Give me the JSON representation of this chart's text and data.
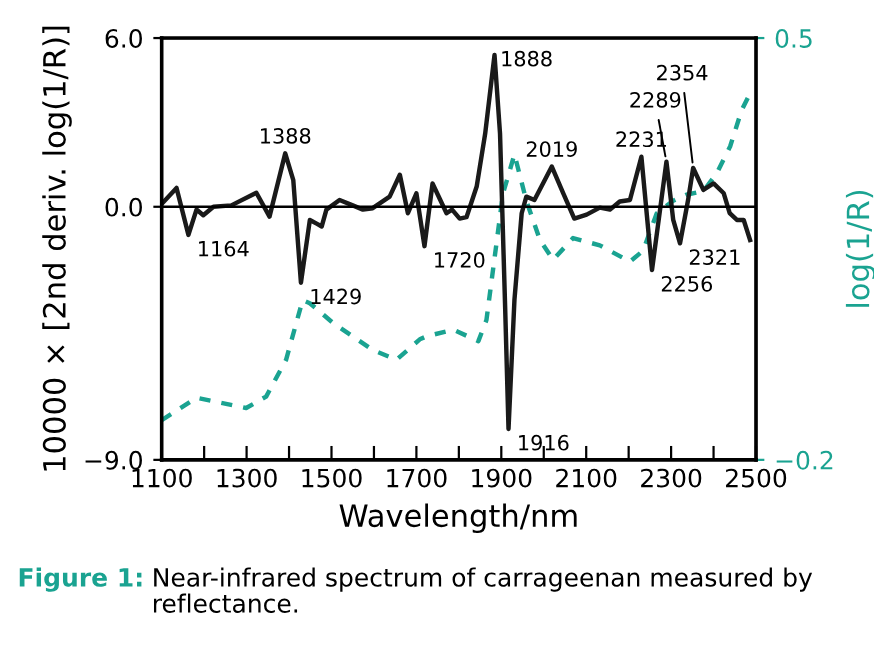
{
  "chart_data": {
    "type": "line",
    "xlabel": "Wavelength/nm",
    "ylabel": "10000 × [2nd deriv. log(1/R)]",
    "y2label": "log(1/R)",
    "xlim": [
      1100,
      2500
    ],
    "xticks": [
      1100,
      {
        "value": 1200,
        "label": null
      },
      1300,
      {
        "value": 1400,
        "label": null
      },
      1500,
      {
        "value": 1600,
        "label": null
      },
      1700,
      {
        "value": 1800,
        "label": null
      },
      1900,
      {
        "value": 2000,
        "label": null
      },
      2100,
      {
        "value": 2200,
        "label": null
      },
      2300,
      {
        "value": 2400,
        "label": null
      },
      2500
    ],
    "ylim": [
      -9,
      6
    ],
    "yticks": [
      {
        "value": -9,
        "label": "−9.0"
      },
      {
        "value": 0,
        "label": "0.0"
      },
      {
        "value": 6,
        "label": "6.0"
      }
    ],
    "y2lim": [
      -0.2,
      0.5
    ],
    "y2ticks": [
      {
        "value": -0.2,
        "label": "−0.2"
      },
      {
        "value": 0.5,
        "label": "0.5"
      }
    ],
    "grid": false,
    "legend": false,
    "ref_lines": [
      {
        "axis": "y",
        "value": 0,
        "color": "#000000"
      }
    ],
    "series": [
      {
        "color": "#1a1a1a",
        "line_style": "solid",
        "x": [
          1100,
          1135,
          1163,
          1182,
          1198,
          1222,
          1264,
          1323,
          1354,
          1391,
          1410,
          1428,
          1449,
          1465,
          1477,
          1488,
          1519,
          1550,
          1574,
          1597,
          1637,
          1661,
          1680,
          1700,
          1719,
          1738,
          1771,
          1784,
          1802,
          1818,
          1842,
          1862,
          1884,
          1897,
          1909,
          1917,
          1931,
          1948,
          1959,
          1978,
          2019,
          2046,
          2072,
          2101,
          2132,
          2156,
          2179,
          2203,
          2230,
          2255,
          2277,
          2289,
          2305,
          2321,
          2340,
          2352,
          2376,
          2400,
          2424,
          2438,
          2455,
          2471,
          2486
        ],
        "values": [
          0.1,
          0.67,
          -1.0,
          -0.1,
          -0.3,
          0.0,
          0.05,
          0.5,
          -0.35,
          1.9,
          0.95,
          -2.7,
          -0.47,
          -0.6,
          -0.7,
          -0.1,
          0.24,
          0.05,
          -0.1,
          -0.05,
          0.36,
          1.14,
          -0.23,
          0.48,
          -1.4,
          0.83,
          -0.23,
          -0.1,
          -0.42,
          -0.37,
          0.72,
          2.6,
          5.4,
          2.6,
          -3.55,
          -7.9,
          -3.3,
          -0.23,
          0.36,
          0.24,
          1.43,
          0.48,
          -0.42,
          -0.28,
          -0.03,
          -0.1,
          0.19,
          0.24,
          1.78,
          -2.25,
          0.24,
          1.6,
          -0.47,
          -1.3,
          0.24,
          1.38,
          0.6,
          0.83,
          0.48,
          -0.23,
          -0.47,
          -0.47,
          -1.18
        ]
      },
      {
        "color": "#1aa391",
        "line_style": "dashed",
        "axis": "y2",
        "x": [
          1100,
          1182,
          1299,
          1346,
          1393,
          1432,
          1449,
          1504,
          1598,
          1653,
          1708,
          1724,
          1787,
          1846,
          1865,
          1904,
          1931,
          1959,
          1991,
          2022,
          2069,
          2132,
          2203,
          2234,
          2266,
          2305,
          2336,
          2376,
          2407,
          2439,
          2466,
          2486
        ],
        "values": [
          -0.134,
          -0.097,
          -0.114,
          -0.095,
          -0.034,
          0.065,
          0.06,
          0.027,
          -0.018,
          -0.034,
          0.0,
          0.005,
          0.016,
          -0.003,
          0.032,
          0.242,
          0.307,
          0.23,
          0.165,
          0.132,
          0.168,
          0.156,
          0.129,
          0.147,
          0.209,
          0.23,
          0.24,
          0.246,
          0.275,
          0.32,
          0.38,
          0.408
        ]
      }
    ],
    "annotations": [
      {
        "text": "1164",
        "x": 1163,
        "y": -1.0
      },
      {
        "text": "1388",
        "x": 1391,
        "y": 1.9
      },
      {
        "text": "1429",
        "x": 1428,
        "y": -2.7
      },
      {
        "text": "1720",
        "x": 1719,
        "y": -1.4
      },
      {
        "text": "1888",
        "x": 1884,
        "y": 5.4
      },
      {
        "text": "1916",
        "x": 1917,
        "y": -7.9
      },
      {
        "text": "2019",
        "x": 2019,
        "y": 1.43
      },
      {
        "text": "2231",
        "x": 2230,
        "y": 1.78
      },
      {
        "text": "2256",
        "x": 2255,
        "y": -2.25
      },
      {
        "text": "2289",
        "x": 2289,
        "y": 1.6
      },
      {
        "text": "2321",
        "x": 2321,
        "y": -1.3
      },
      {
        "text": "2354",
        "x": 2352,
        "y": 1.38
      },
      "Figure 1:",
      "Near-infrared spectrum of carrageenan measured by\nreflectance."
    ]
  }
}
